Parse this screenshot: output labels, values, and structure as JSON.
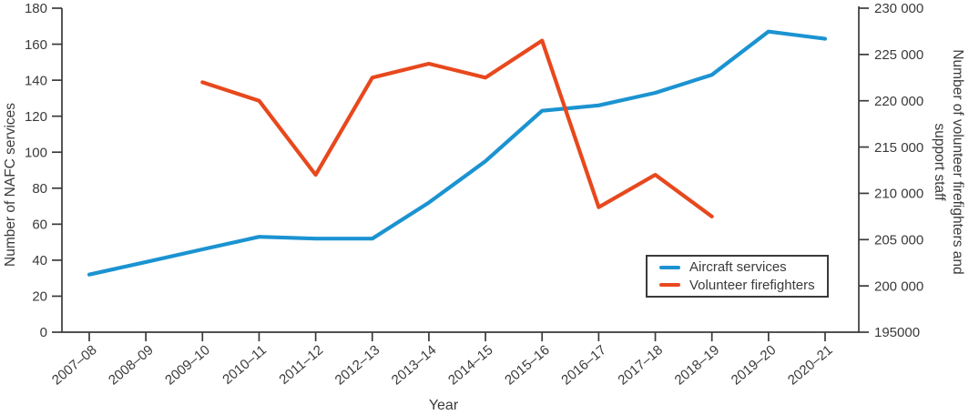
{
  "chart_data": {
    "type": "line",
    "title": "",
    "xlabel": "Year",
    "ylabel_left": "Number of NAFC services",
    "ylabel_right": "Number of volunteer firefighters and support staff",
    "ylabel_right_lines": [
      "Number of volunteer firefighters and",
      "support staff"
    ],
    "categories": [
      "2007–08",
      "2008–09",
      "2009–10",
      "2010–11",
      "2011–12",
      "2012–13",
      "2013–14",
      "2014–15",
      "2015–16",
      "2016–17",
      "2017–18",
      "2018–19",
      "2019–20",
      "2020–21"
    ],
    "left_axis": {
      "min": 0,
      "max": 180,
      "step": 20,
      "tick_labels": [
        "0",
        "20",
        "40",
        "60",
        "80",
        "100",
        "120",
        "140",
        "160",
        "180"
      ]
    },
    "right_axis": {
      "min": 195000,
      "max": 230000,
      "step": 5000,
      "tick_labels_top_down": [
        "230 000",
        "225 000",
        "220 000",
        "215 000",
        "210 000",
        "205 000",
        "200 000",
        "195000"
      ]
    },
    "series": [
      {
        "name": "Aircraft services",
        "axis": "left",
        "color": "#1b93d1",
        "values": [
          32,
          39,
          46,
          53,
          52,
          52,
          72,
          95,
          123,
          126,
          133,
          143,
          167,
          163
        ]
      },
      {
        "name": "Volunteer firefighters",
        "axis": "right",
        "color": "#e8481d",
        "values": [
          null,
          null,
          222000,
          220000,
          212000,
          222500,
          224000,
          222500,
          226500,
          208500,
          212000,
          207500,
          null,
          null
        ]
      }
    ],
    "grid": false,
    "legend_position": "inside lower right"
  },
  "legend": {
    "items": [
      {
        "label": "Aircraft services",
        "color": "#1b93d1"
      },
      {
        "label": "Volunteer firefighters",
        "color": "#e8481d"
      }
    ]
  },
  "colors": {
    "axis": "#3a3a3a",
    "text": "#3a3a3a",
    "background": "#ffffff"
  }
}
